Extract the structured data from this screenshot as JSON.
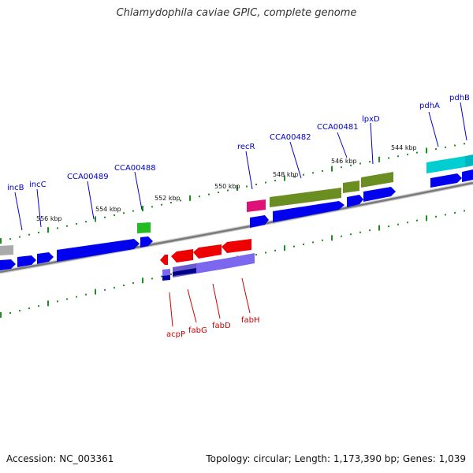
{
  "title": "Chlamydophila caviae GPIC, complete genome",
  "footer": {
    "accession": "Accession: NC_003361",
    "summary": "Topology: circular; Length: 1,173,390 bp; Genes: 1,039"
  },
  "kbp_labels": [
    "544 kbp",
    "546 kbp",
    "548 kbp",
    "550 kbp",
    "552 kbp",
    "554 kbp",
    "556 kbp"
  ],
  "gene_labels_forward": [
    "pdhB",
    "pdhA",
    "lpxD",
    "CCA00481",
    "CCA00482",
    "recR",
    "CCA00488",
    "CCA00489",
    "incC",
    "incB"
  ],
  "gene_labels_reverse": [
    "acpP",
    "fabG",
    "fabD",
    "fabH"
  ],
  "colors": {
    "backbone": "#808080",
    "forward_gene": "#0000ee",
    "reverse_gene": "#ee0000",
    "cog_olive": "#6b8e23",
    "cog_cyan": "#00ced1",
    "cog_green": "#22bb22",
    "cog_magenta": "#dd1177",
    "cog_lavender": "#7b68ee",
    "cog_grey": "#aaaaaa",
    "tick": "#228b22",
    "forward_label": "#0000cc",
    "reverse_label": "#cc0000"
  }
}
